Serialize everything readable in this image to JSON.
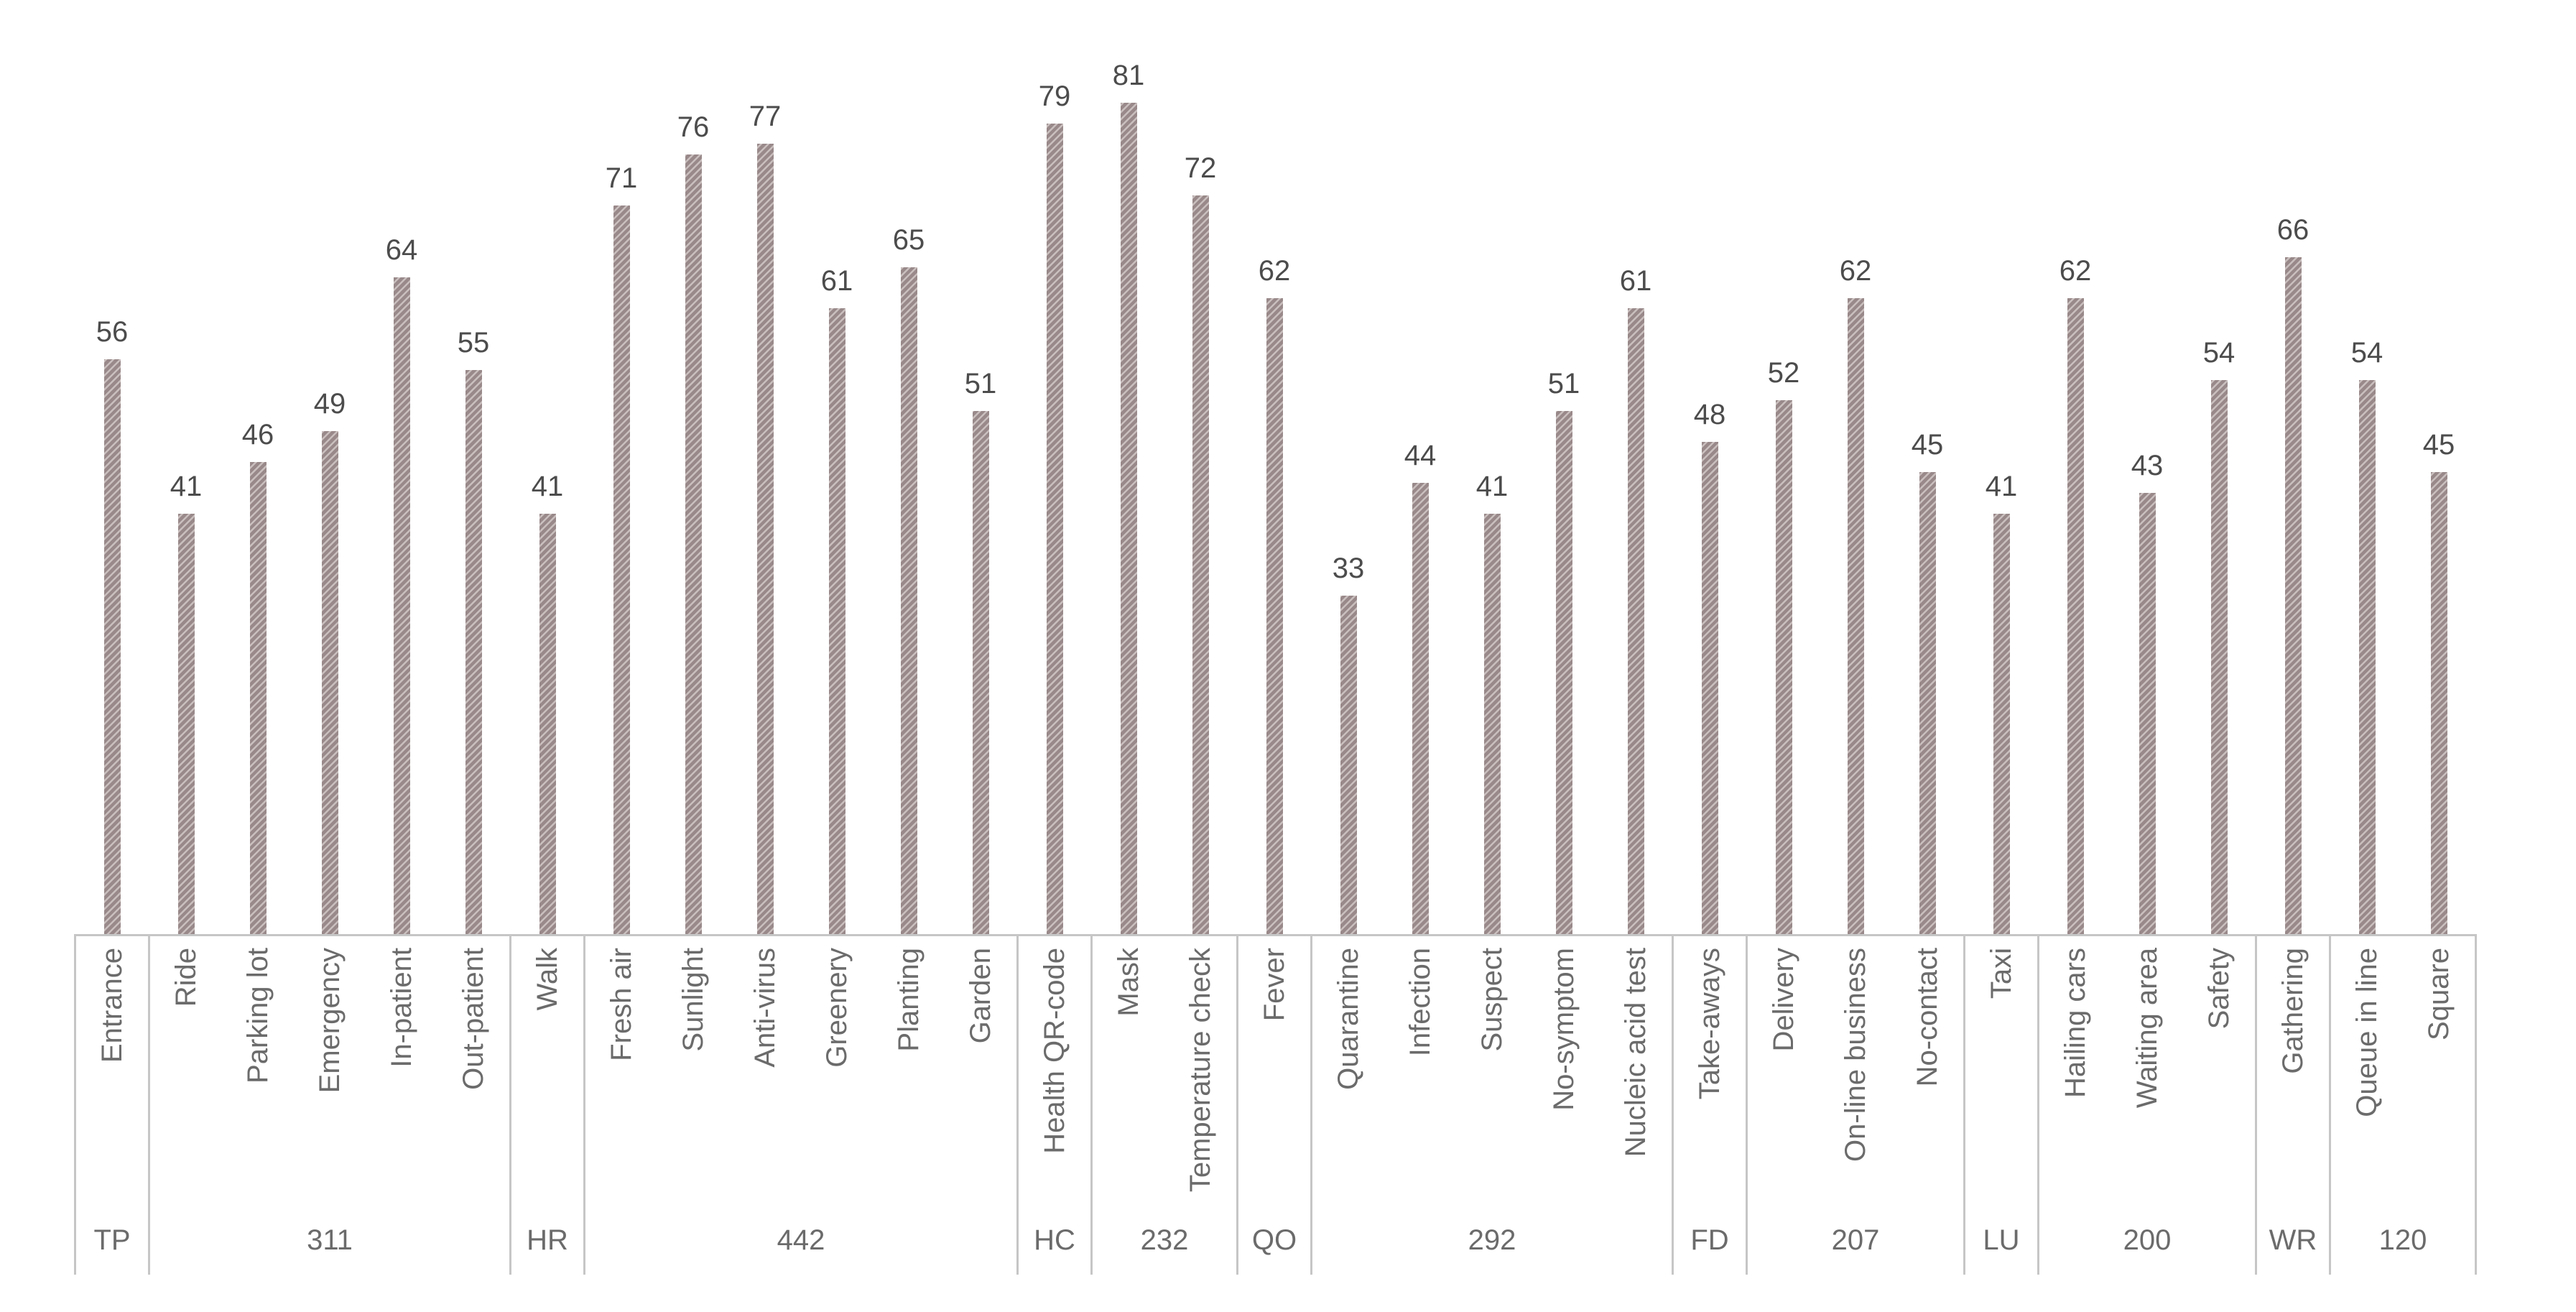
{
  "figure": {
    "background": "#ffffff"
  },
  "chart_data": {
    "type": "bar",
    "title": "",
    "xlabel": "",
    "ylabel": "",
    "ylim": [
      0,
      91
    ],
    "grid": false,
    "legend": "none",
    "value_labels": true,
    "categories": [
      "Entrance",
      "Ride",
      "Parking lot",
      "Emergency",
      "In-patient",
      "Out-patient",
      "Walk",
      "Fresh air",
      "Sunlight",
      "Anti-virus",
      "Greenery",
      "Planting",
      "Garden",
      "Health QR-code",
      "Mask",
      "Temperature check",
      "Fever",
      "Quarantine",
      "Infection",
      "Suspect",
      "No-symptom",
      "Nucleic acid test",
      "Take-aways",
      "Delivery",
      "On-line business",
      "No-contact",
      "Taxi",
      "Hailing cars",
      "Waiting area",
      "Safety",
      "Gathering",
      "Queue in line",
      "Square"
    ],
    "values": [
      56,
      41,
      46,
      49,
      64,
      55,
      41,
      71,
      76,
      77,
      61,
      65,
      51,
      79,
      81,
      72,
      62,
      33,
      44,
      41,
      51,
      61,
      48,
      52,
      62,
      45,
      41,
      62,
      43,
      54,
      66,
      54,
      45
    ],
    "groups": [
      {
        "code": "TP",
        "categories": [
          "Entrance"
        ],
        "values": [
          56
        ]
      },
      {
        "code": "311",
        "categories": [
          "Ride",
          "Parking lot",
          "Emergency",
          "In-patient",
          "Out-patient"
        ],
        "values": [
          41,
          46,
          49,
          64,
          55
        ]
      },
      {
        "code": "HR",
        "categories": [
          "Walk"
        ],
        "values": [
          41
        ]
      },
      {
        "code": "442",
        "categories": [
          "Fresh air",
          "Sunlight",
          "Anti-virus",
          "Greenery",
          "Planting",
          "Garden"
        ],
        "values": [
          71,
          76,
          77,
          61,
          65,
          51
        ]
      },
      {
        "code": "HC",
        "categories": [
          "Health QR-code"
        ],
        "values": [
          79
        ]
      },
      {
        "code": "232",
        "categories": [
          "Mask",
          "Temperature check"
        ],
        "values": [
          81,
          72
        ]
      },
      {
        "code": "QO",
        "categories": [
          "Fever"
        ],
        "values": [
          62
        ]
      },
      {
        "code": "292",
        "categories": [
          "Quarantine",
          "Infection",
          "Suspect",
          "No-symptom",
          "Nucleic acid test"
        ],
        "values": [
          33,
          44,
          41,
          51,
          61
        ]
      },
      {
        "code": "FD",
        "categories": [
          "Take-aways"
        ],
        "values": [
          48
        ]
      },
      {
        "code": "207",
        "categories": [
          "Delivery",
          "On-line business",
          "No-contact"
        ],
        "values": [
          52,
          62,
          45
        ]
      },
      {
        "code": "LU",
        "categories": [
          "Taxi"
        ],
        "values": [
          41
        ]
      },
      {
        "code": "200",
        "categories": [
          "Hailing cars",
          "Waiting area",
          "Safety"
        ],
        "values": [
          62,
          43,
          54
        ]
      },
      {
        "code": "WR",
        "categories": [
          "Gathering"
        ],
        "values": [
          66
        ]
      },
      {
        "code": "120",
        "categories": [
          "Queue in line",
          "Square"
        ],
        "values": [
          54,
          45
        ]
      }
    ],
    "colors": {
      "bar_hatch_dark": "#99898a",
      "bar_hatch_light": "#c9bfbe",
      "hatch_direction": "forward-diagonal",
      "axis_line": "#c6c6c6",
      "value_text": "#4c4c4c",
      "label_text": "#6b6b6b",
      "background": "#ffffff"
    }
  }
}
